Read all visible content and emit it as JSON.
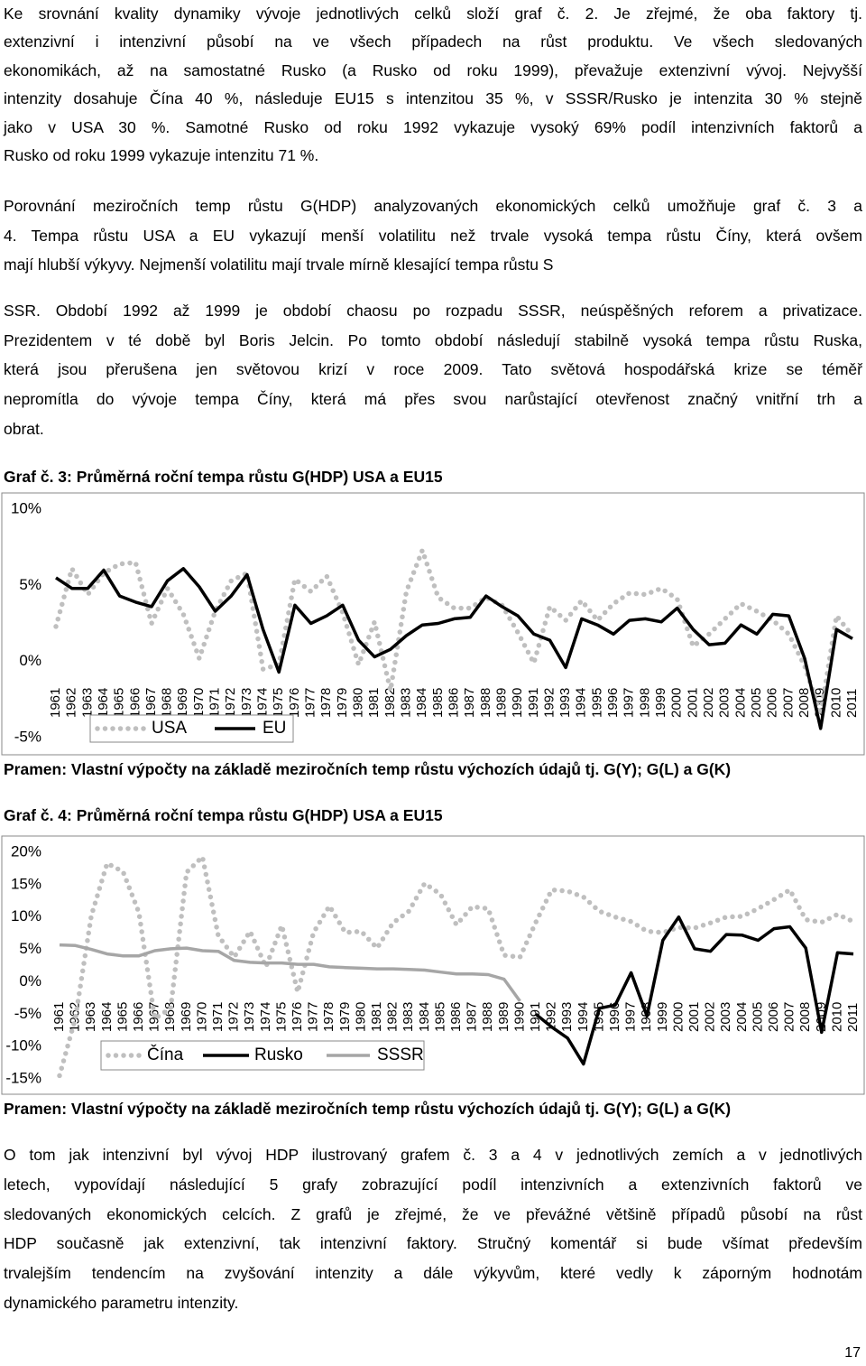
{
  "paragraphs": [
    {
      "lines": [
        "Ke srovnání kvality dynamiky vývoje jednotlivých celků složí graf č. 2. Je zřejmé, že oba faktory tj.",
        "extenzivní i intenzivní působí na ve všech případech na růst produktu. Ve všech sledovaných",
        "ekonomikách, až na samostatné Rusko (a Rusko od roku 1999), převažuje extenzivní vývoj. Nejvyšší",
        "intenzity dosahuje Čína 40 %, následuje EU15 s intenzitou 35 %, v SSSR/Rusko je intenzita 30 % stejně",
        "jako v USA 30 %. Samotné Rusko od roku 1992 vykazuje vysoký 69% podíl intenzivních faktorů a",
        "Rusko od roku 1999 vykazuje intenzitu 71 %."
      ]
    },
    {
      "lines": [
        "Porovnání meziročních temp růstu G(HDP) analyzovaných ekonomických celků umožňuje graf č. 3 a",
        "4. Tempa růstu USA a EU vykazují menší volatilitu než trvale vysoká tempa růstu Číny, která ovšem",
        "mají hlubší výkyvy. Nejmenší volatilitu mají trvale mírně klesající tempa růstu S"
      ]
    },
    {
      "lines": [
        "SSR. Období 1992 až 1999 je období chaosu po rozpadu SSSR, neúspěšných reforem a privatizace.",
        "Prezidentem v té době byl Boris Jelcin. Po tomto období následují stabilně vysoká tempa růstu Ruska,",
        "která jsou přerušena jen světovou krizí v roce 2009. Tato světová hospodářská krize se téměř",
        "nepromítla do vývoje tempa Číny, která má přes svou narůstající otevřenost značný vnitřní trh a",
        "obrat."
      ]
    },
    {
      "lines": [
        "O tom jak intenzivní byl vývoj HDP ilustrovaný grafem č. 3 a 4 v jednotlivých zemích a v jednotlivých",
        "letech, vypovídají následující 5 grafy zobrazující podíl intenzivních a extenzivních faktorů ve",
        "sledovaných ekonomických celcích. Z grafů je zřejmé, že ve převážné většině případů působí na růst",
        "HDP současně jak extenzivní, tak intenzivní faktory. Stručný komentář si bude všímat především",
        "trvalejším tendencím na zvyšování intenzity a dále výkyvům, které vedly k záporným hodnotám",
        "dynamického parametru intenzity."
      ]
    }
  ],
  "chart_data": [
    {
      "type": "line",
      "title": "Graf č. 3: Průměrná roční tempa růstu G(HDP) USA a EU15",
      "source": "Pramen: Vlastní výpočty na základě meziročních temp růstu výchozích údajů tj. G(Y); G(L) a G(K)",
      "categories": [
        "1961",
        "1962",
        "1963",
        "1964",
        "1965",
        "1966",
        "1967",
        "1968",
        "1969",
        "1970",
        "1971",
        "1972",
        "1973",
        "1974",
        "1975",
        "1976",
        "1977",
        "1978",
        "1979",
        "1980",
        "1981",
        "1982",
        "1983",
        "1984",
        "1985",
        "1986",
        "1987",
        "1988",
        "1989",
        "1990",
        "1991",
        "1992",
        "1993",
        "1994",
        "1995",
        "1996",
        "1997",
        "1998",
        "1999",
        "2000",
        "2001",
        "2002",
        "2003",
        "2004",
        "2005",
        "2006",
        "2007",
        "2008",
        "2009",
        "2010",
        "2011"
      ],
      "ylim": [
        -5,
        10
      ],
      "yticks": [
        {
          "value": -5,
          "label": "-5%"
        },
        {
          "value": 0,
          "label": "0%"
        },
        {
          "value": 5,
          "label": "5%"
        },
        {
          "value": 10,
          "label": "10%"
        }
      ],
      "grid": false,
      "legend": "bottom-left",
      "series": [
        {
          "name": "USA",
          "color": "#bfbfbf",
          "line_style": "dotted",
          "values": [
            2.3,
            6.1,
            4.4,
            5.8,
            6.4,
            6.5,
            2.5,
            4.8,
            3.1,
            0.2,
            3.3,
            5.3,
            5.8,
            -0.5,
            -0.2,
            5.4,
            4.6,
            5.6,
            3.2,
            -0.2,
            2.6,
            -1.9,
            4.6,
            7.3,
            4.2,
            3.5,
            3.5,
            4.2,
            3.7,
            1.9,
            -0.1,
            3.6,
            2.7,
            4.0,
            2.7,
            3.8,
            4.5,
            4.4,
            4.8,
            4.1,
            1.0,
            1.8,
            2.8,
            3.8,
            3.3,
            2.7,
            1.8,
            -0.3,
            -3.5,
            3.0,
            1.7
          ]
        },
        {
          "name": "EU",
          "color": "#000000",
          "line_style": "solid",
          "values": [
            5.5,
            4.8,
            4.8,
            6.0,
            4.3,
            3.9,
            3.6,
            5.3,
            6.1,
            4.9,
            3.3,
            4.3,
            5.7,
            2.1,
            -0.7,
            3.7,
            2.5,
            3.0,
            3.7,
            1.4,
            0.3,
            0.8,
            1.7,
            2.4,
            2.5,
            2.8,
            2.9,
            4.3,
            3.6,
            3.0,
            1.8,
            1.4,
            -0.4,
            2.8,
            2.4,
            1.8,
            2.7,
            2.8,
            2.6,
            3.5,
            2.1,
            1.1,
            1.2,
            2.4,
            1.8,
            3.1,
            3.0,
            0.2,
            -4.4,
            2.1,
            1.5
          ]
        }
      ]
    },
    {
      "type": "line",
      "title": "Graf č. 4: Průměrná roční tempa růstu G(HDP) USA a EU15",
      "source": "Pramen: Vlastní výpočty na základě meziročních temp růstu výchozích údajů tj. G(Y); G(L) a G(K)",
      "categories": [
        "1961",
        "1962",
        "1963",
        "1964",
        "1965",
        "1966",
        "1967",
        "1968",
        "1969",
        "1970",
        "1971",
        "1972",
        "1973",
        "1974",
        "1975",
        "1976",
        "1977",
        "1978",
        "1979",
        "1980",
        "1981",
        "1982",
        "1983",
        "1984",
        "1985",
        "1986",
        "1987",
        "1988",
        "1989",
        "1990",
        "1991",
        "1992",
        "1993",
        "1994",
        "1995",
        "1996",
        "1997",
        "1998",
        "1999",
        "2000",
        "2001",
        "2002",
        "2003",
        "2004",
        "2005",
        "2006",
        "2007",
        "2008",
        "2009",
        "2010",
        "2011"
      ],
      "ylim": [
        -15,
        20
      ],
      "yticks": [
        {
          "value": -15,
          "label": "-15%"
        },
        {
          "value": -10,
          "label": "-10%"
        },
        {
          "value": -5,
          "label": "-5%"
        },
        {
          "value": 0,
          "label": "0%"
        },
        {
          "value": 5,
          "label": "5%"
        },
        {
          "value": 10,
          "label": "10%"
        },
        {
          "value": 15,
          "label": "15%"
        },
        {
          "value": 20,
          "label": "20%"
        }
      ],
      "grid": false,
      "legend": "bottom-left",
      "series": [
        {
          "name": "Čína",
          "color": "#bfbfbf",
          "line_style": "dotted",
          "values": [
            -14.5,
            -5.6,
            10.2,
            18.3,
            17.0,
            10.7,
            -5.7,
            -4.1,
            16.9,
            19.3,
            7.1,
            3.8,
            7.8,
            2.3,
            8.7,
            -1.6,
            7.6,
            11.7,
            7.6,
            7.8,
            5.2,
            9.1,
            10.9,
            15.2,
            13.5,
            8.8,
            11.6,
            11.3,
            4.1,
            3.8,
            9.2,
            14.2,
            14.0,
            13.1,
            10.9,
            10.0,
            9.3,
            7.8,
            7.6,
            8.4,
            8.3,
            9.1,
            10.0,
            10.1,
            11.3,
            12.7,
            14.2,
            9.6,
            9.2,
            10.4,
            9.3
          ]
        },
        {
          "name": "Rusko",
          "color": "#000000",
          "line_style": "solid",
          "values": [
            null,
            null,
            null,
            null,
            null,
            null,
            null,
            null,
            null,
            null,
            null,
            null,
            null,
            null,
            null,
            null,
            null,
            null,
            null,
            null,
            null,
            null,
            null,
            null,
            null,
            null,
            null,
            null,
            null,
            null,
            -5.0,
            -7.0,
            -8.7,
            -12.7,
            -4.1,
            -3.6,
            1.4,
            -5.3,
            6.4,
            10.0,
            5.1,
            4.7,
            7.3,
            7.2,
            6.4,
            8.2,
            8.5,
            5.2,
            -7.8,
            4.5,
            4.3
          ]
        },
        {
          "name": "SSSR",
          "color": "#a6a6a6",
          "line_style": "solid",
          "values": [
            5.7,
            5.6,
            5.0,
            4.3,
            4.0,
            4.0,
            4.8,
            5.1,
            5.2,
            4.8,
            4.7,
            3.3,
            3.0,
            2.9,
            2.9,
            2.7,
            2.7,
            2.3,
            2.2,
            2.1,
            2.0,
            2.0,
            1.9,
            1.8,
            1.5,
            1.2,
            1.2,
            1.1,
            0.4,
            -3.0,
            null,
            null,
            null,
            null,
            null,
            null,
            null,
            null,
            null,
            null,
            null,
            null,
            null,
            null,
            null,
            null,
            null,
            null,
            null,
            null,
            null
          ]
        }
      ]
    }
  ],
  "page_number": "17"
}
